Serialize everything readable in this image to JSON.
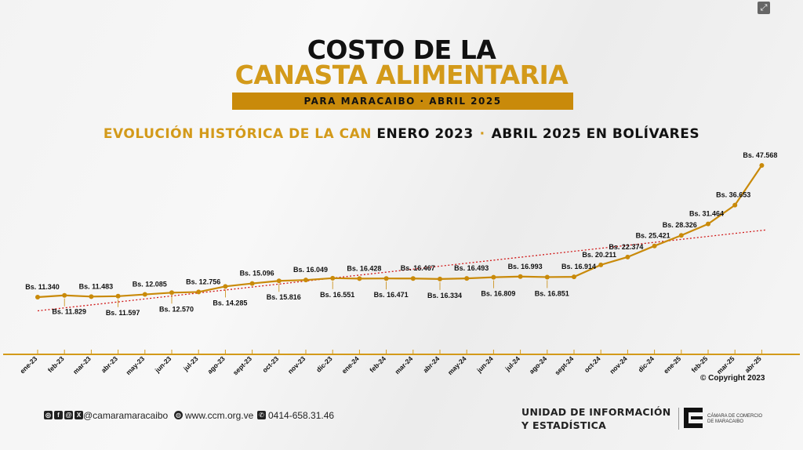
{
  "header": {
    "title_line1": "COSTO DE LA",
    "title_line2": "CANASTA ALIMENTARIA",
    "banner": "PARA MARACAIBO · ABRIL 2025",
    "subtitle_a": "EVOLUCIÓN HISTÓRICA DE LA CAN",
    "subtitle_b": "ENERO 2023",
    "subtitle_dot": "·",
    "subtitle_c": "ABRIL 2025 EN BOLÍVARES"
  },
  "copyright": "© Copyright 2023",
  "footer": {
    "social_handle": "@camaramaracaibo",
    "website": "www.ccm.org.ve",
    "phone": "0414-658.31.46",
    "unit_line1": "UNIDAD DE INFORMACIÓN",
    "unit_line2": "Y ESTADÍSTICA",
    "logo_line1": "CÁMARA DE COMERCIO",
    "logo_line2": "DE MARACAIBO"
  },
  "colors": {
    "accent": "#d39a1a",
    "line": "#c98a0a",
    "trend": "#d01818",
    "axis": "#d39a1a"
  },
  "chart_data": {
    "type": "line",
    "categories": [
      "ene-23",
      "feb-23",
      "mar-23",
      "abr-23",
      "may-23",
      "jun-23",
      "jul-23",
      "ago-23",
      "sept-23",
      "oct-23",
      "nov-23",
      "dic-23",
      "ene-24",
      "feb-24",
      "mar-24",
      "abr-24",
      "may-24",
      "jun-24",
      "jul-24",
      "ago-24",
      "sept-24",
      "oct-24",
      "nov-24",
      "dic-24",
      "ene-25",
      "feb-25",
      "mar-25",
      "abr-25"
    ],
    "values": [
      11340,
      11829,
      11483,
      11597,
      12085,
      12570,
      12756,
      14285,
      15096,
      15816,
      16049,
      16551,
      16428,
      16471,
      16467,
      16334,
      16493,
      16809,
      16993,
      16851,
      16914,
      20211,
      22374,
      25421,
      28326,
      31464,
      36653,
      47568
    ],
    "labels": [
      "Bs. 11.340",
      "Bs. 11.829",
      "Bs. 11.483",
      "Bs. 11.597",
      "Bs. 12.085",
      "Bs. 12.570",
      "Bs. 12.756",
      "Bs. 14.285",
      "Bs. 15.096",
      "Bs. 15.816",
      "Bs. 16.049",
      "Bs. 16.551",
      "Bs. 16.428",
      "Bs. 16.471",
      "Bs. 16.467",
      "Bs. 16.334",
      "Bs. 16.493",
      "Bs. 16.809",
      "Bs. 16.993",
      "Bs. 16.851",
      "Bs. 16.914",
      "Bs. 20.211",
      "Bs. 22.374",
      "Bs. 25.421",
      "Bs. 28.326",
      "Bs. 31.464",
      "Bs. 36.653",
      "Bs. 47.568"
    ],
    "label_position": [
      "above",
      "below",
      "above",
      "below",
      "above",
      "below",
      "above",
      "below",
      "above",
      "below",
      "above",
      "below",
      "above",
      "below",
      "above",
      "below",
      "above",
      "below",
      "above",
      "below",
      "above",
      "above",
      "above",
      "above",
      "above",
      "above",
      "above",
      "above"
    ],
    "trendline": {
      "type": "linear",
      "style": "dotted"
    },
    "grid": false,
    "legend": "none"
  }
}
